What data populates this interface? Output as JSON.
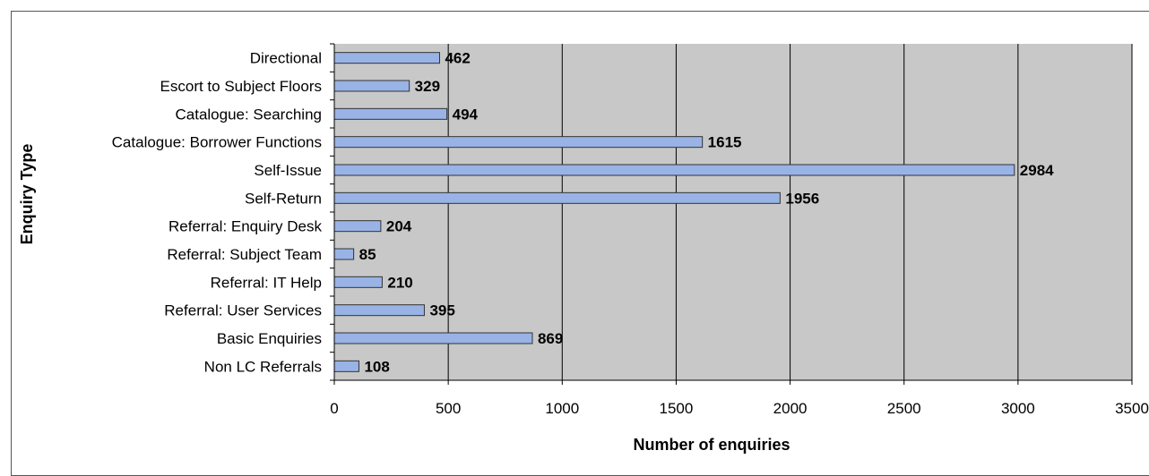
{
  "chart_data": {
    "type": "bar",
    "orientation": "horizontal",
    "categories": [
      "Directional",
      "Escort to Subject Floors",
      "Catalogue: Searching",
      "Catalogue: Borrower Functions",
      "Self-Issue",
      "Self-Return",
      "Referral: Enquiry Desk",
      "Referral: Subject Team",
      "Referral: IT Help",
      "Referral: User Services",
      "Basic Enquiries",
      "Non LC Referrals"
    ],
    "values": [
      462,
      329,
      494,
      1615,
      2984,
      1956,
      204,
      85,
      210,
      395,
      869,
      108
    ],
    "xlabel": "Number of enquiries",
    "ylabel": "Enquiry Type",
    "xlim": [
      0,
      3500
    ],
    "xticks": [
      "0",
      "500",
      "1000",
      "1500",
      "2000",
      "2500",
      "3000",
      "3500"
    ],
    "grid": "vertical",
    "bar_color": "#99B3E6",
    "plot_bg": "#C8C8C8"
  }
}
